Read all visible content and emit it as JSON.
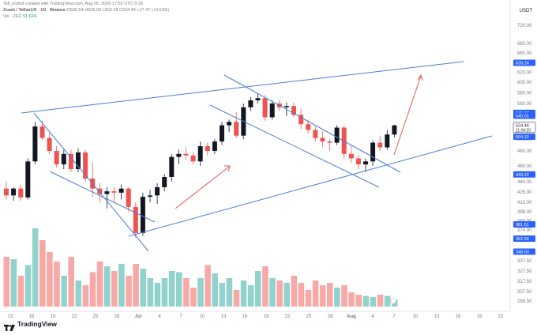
{
  "header": {
    "credit": "Tell_endoif created with TradingView.com, Aug 05, 2026 17:55 UTC-5:30",
    "symbol": "Zcash / TetherUS · 1D · Binance",
    "ohlc": "O508.54 H525.00 L503.18 C524.44 +17.47 (+3.53%)",
    "vol_label": "Vol · ZEC",
    "vol_value": "51.624"
  },
  "axis": {
    "unit": "USDT"
  },
  "logo": {
    "text": "TradingView"
  },
  "colors": {
    "up": "#26a69a",
    "down": "#ef5350",
    "trend": "#4a7fd6",
    "arrow": "#ef5350"
  },
  "chart_data": {
    "type": "candlestick",
    "y_ticks": [
      720,
      680,
      660,
      640,
      620,
      600,
      580,
      560,
      540,
      500,
      480,
      460,
      440,
      425,
      410,
      398,
      386,
      374,
      362,
      350,
      337.5,
      327.5,
      317.5,
      307.5,
      298.5
    ],
    "y_tick_labels": [
      "720.00",
      "680.00",
      "660.00",
      "640.00",
      "620.00",
      "600.00",
      "580.00",
      "560.00",
      "540.00",
      "500.00",
      "480.00",
      "460.00",
      "440.00",
      "425.00",
      "410.00",
      "398.00",
      "386.00",
      "374.00",
      "362.00",
      "350.00",
      "337.50",
      "327.50",
      "317.50",
      "307.50",
      "298.50"
    ],
    "x_labels": [
      "13",
      "16",
      "19",
      "22",
      "25",
      "28",
      "Jul",
      "4",
      "7",
      "10",
      "13",
      "16",
      "19",
      "22",
      "25",
      "28",
      "Aug",
      "4",
      "7",
      "10",
      "13",
      "16",
      "19",
      "22"
    ],
    "price_badges": [
      {
        "label": "639.24",
        "price": 639.24
      },
      {
        "label": "545.16",
        "price": 545.16
      },
      {
        "label": "540.61",
        "price": 540.61
      },
      {
        "label": "524.44",
        "price": 524.44,
        "sub": "11:04:20",
        "style": "last"
      },
      {
        "label": "504.19",
        "price": 504.19
      },
      {
        "label": "449.22",
        "price": 449.22
      },
      {
        "label": "381.51",
        "price": 381.51
      },
      {
        "label": "362.56",
        "price": 362.56
      },
      {
        "label": "348.50",
        "price": 348.5
      }
    ],
    "candles": [
      {
        "o": 430,
        "h": 440,
        "l": 414,
        "c": 420
      },
      {
        "o": 420,
        "h": 432,
        "l": 412,
        "c": 430
      },
      {
        "o": 430,
        "h": 436,
        "l": 412,
        "c": 417
      },
      {
        "o": 417,
        "h": 470,
        "l": 414,
        "c": 466
      },
      {
        "o": 466,
        "h": 530,
        "l": 462,
        "c": 522
      },
      {
        "o": 522,
        "h": 532,
        "l": 498,
        "c": 502
      },
      {
        "o": 502,
        "h": 510,
        "l": 476,
        "c": 480
      },
      {
        "o": 480,
        "h": 488,
        "l": 458,
        "c": 462
      },
      {
        "o": 462,
        "h": 482,
        "l": 456,
        "c": 476
      },
      {
        "o": 476,
        "h": 482,
        "l": 452,
        "c": 456
      },
      {
        "o": 456,
        "h": 484,
        "l": 452,
        "c": 478
      },
      {
        "o": 478,
        "h": 482,
        "l": 440,
        "c": 444
      },
      {
        "o": 444,
        "h": 464,
        "l": 418,
        "c": 430
      },
      {
        "o": 430,
        "h": 438,
        "l": 410,
        "c": 422
      },
      {
        "o": 422,
        "h": 432,
        "l": 402,
        "c": 426
      },
      {
        "o": 426,
        "h": 432,
        "l": 410,
        "c": 424
      },
      {
        "o": 424,
        "h": 436,
        "l": 414,
        "c": 430
      },
      {
        "o": 430,
        "h": 432,
        "l": 398,
        "c": 404
      },
      {
        "o": 404,
        "h": 410,
        "l": 364,
        "c": 370
      },
      {
        "o": 370,
        "h": 424,
        "l": 366,
        "c": 418
      },
      {
        "o": 418,
        "h": 428,
        "l": 410,
        "c": 420
      },
      {
        "o": 420,
        "h": 438,
        "l": 408,
        "c": 432
      },
      {
        "o": 432,
        "h": 450,
        "l": 426,
        "c": 446
      },
      {
        "o": 446,
        "h": 476,
        "l": 440,
        "c": 472
      },
      {
        "o": 472,
        "h": 482,
        "l": 462,
        "c": 476
      },
      {
        "o": 476,
        "h": 486,
        "l": 468,
        "c": 474
      },
      {
        "o": 474,
        "h": 478,
        "l": 462,
        "c": 466
      },
      {
        "o": 466,
        "h": 496,
        "l": 460,
        "c": 488
      },
      {
        "o": 488,
        "h": 494,
        "l": 474,
        "c": 480
      },
      {
        "o": 480,
        "h": 500,
        "l": 476,
        "c": 496
      },
      {
        "o": 496,
        "h": 530,
        "l": 490,
        "c": 524
      },
      {
        "o": 524,
        "h": 534,
        "l": 512,
        "c": 530
      },
      {
        "o": 530,
        "h": 546,
        "l": 502,
        "c": 506
      },
      {
        "o": 506,
        "h": 560,
        "l": 500,
        "c": 554
      },
      {
        "o": 554,
        "h": 572,
        "l": 548,
        "c": 566
      },
      {
        "o": 566,
        "h": 578,
        "l": 560,
        "c": 570
      },
      {
        "o": 570,
        "h": 576,
        "l": 532,
        "c": 538
      },
      {
        "o": 538,
        "h": 566,
        "l": 534,
        "c": 560
      },
      {
        "o": 560,
        "h": 566,
        "l": 548,
        "c": 554
      },
      {
        "o": 554,
        "h": 562,
        "l": 540,
        "c": 556
      },
      {
        "o": 556,
        "h": 562,
        "l": 538,
        "c": 542
      },
      {
        "o": 542,
        "h": 552,
        "l": 518,
        "c": 526
      },
      {
        "o": 526,
        "h": 534,
        "l": 510,
        "c": 516
      },
      {
        "o": 516,
        "h": 522,
        "l": 496,
        "c": 502
      },
      {
        "o": 502,
        "h": 514,
        "l": 486,
        "c": 496
      },
      {
        "o": 496,
        "h": 500,
        "l": 480,
        "c": 494
      },
      {
        "o": 494,
        "h": 524,
        "l": 490,
        "c": 520
      },
      {
        "o": 520,
        "h": 524,
        "l": 470,
        "c": 476
      },
      {
        "o": 476,
        "h": 490,
        "l": 464,
        "c": 470
      },
      {
        "o": 470,
        "h": 474,
        "l": 456,
        "c": 462
      },
      {
        "o": 462,
        "h": 470,
        "l": 452,
        "c": 466
      },
      {
        "o": 466,
        "h": 498,
        "l": 460,
        "c": 494
      },
      {
        "o": 494,
        "h": 506,
        "l": 480,
        "c": 486
      },
      {
        "o": 486,
        "h": 516,
        "l": 482,
        "c": 508
      },
      {
        "o": 508,
        "h": 525,
        "l": 503,
        "c": 524
      }
    ],
    "volumes": [
      0.42,
      0.4,
      0.26,
      0.35,
      0.66,
      0.56,
      0.46,
      0.38,
      0.26,
      0.42,
      0.22,
      0.18,
      0.29,
      0.38,
      0.34,
      0.3,
      0.36,
      0.26,
      0.36,
      0.32,
      0.24,
      0.2,
      0.24,
      0.3,
      0.29,
      0.24,
      0.16,
      0.24,
      0.35,
      0.28,
      0.2,
      0.24,
      0.14,
      0.22,
      0.18,
      0.3,
      0.34,
      0.24,
      0.22,
      0.2,
      0.26,
      0.2,
      0.14,
      0.22,
      0.18,
      0.2,
      0.16,
      0.18,
      0.12,
      0.1,
      0.09,
      0.08,
      0.1,
      0.09,
      0.06
    ]
  }
}
